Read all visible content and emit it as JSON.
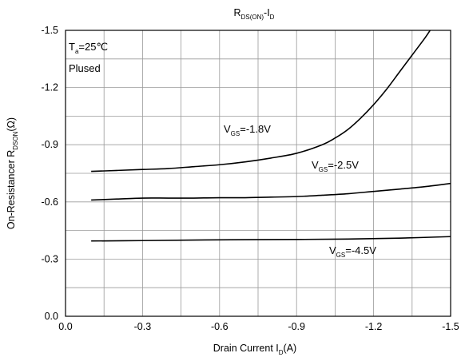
{
  "chart_data": {
    "type": "line",
    "title": {
      "main": "R",
      "sub1": "DS(ON)",
      "mid": "-I",
      "sub2": "D"
    },
    "xlabel": {
      "main": "Drain Current I",
      "sub": "D",
      "tail": "(A)"
    },
    "ylabel": {
      "main": "On-Resistancer R",
      "sub": "DSON",
      "tail": "(Ω)"
    },
    "xlim": [
      0.0,
      -1.5
    ],
    "ylim": [
      0.0,
      -1.5
    ],
    "x_ticks": [
      0.0,
      -0.3,
      -0.6,
      -0.9,
      -1.2,
      -1.5
    ],
    "y_ticks": [
      0.0,
      -0.3,
      -0.6,
      -0.9,
      -1.2,
      -1.5
    ],
    "x_tick_labels": [
      "0.0",
      "-0.3",
      "-0.6",
      "-0.9",
      "-1.2",
      "-1.5"
    ],
    "y_tick_labels": [
      "0.0",
      "-0.3",
      "-0.6",
      "-0.9",
      "-1.2",
      "-1.5"
    ],
    "grid": true,
    "conditions": {
      "temp": {
        "main": "T",
        "sub": "a",
        "tail": "=25℃"
      },
      "mode": "Plused"
    },
    "series": [
      {
        "name": {
          "main": "V",
          "sub": "GS",
          "tail": "=-1.8V"
        },
        "x": [
          -0.1,
          -0.2,
          -0.3,
          -0.4,
          -0.5,
          -0.6,
          -0.7,
          -0.8,
          -0.9,
          -1.0,
          -1.05,
          -1.1,
          -1.15,
          -1.2,
          -1.25,
          -1.3,
          -1.35,
          -1.4,
          -1.42
        ],
        "y": [
          -0.76,
          -0.765,
          -0.77,
          -0.775,
          -0.785,
          -0.795,
          -0.81,
          -0.83,
          -0.855,
          -0.9,
          -0.935,
          -0.98,
          -1.04,
          -1.11,
          -1.19,
          -1.28,
          -1.37,
          -1.46,
          -1.5
        ]
      },
      {
        "name": {
          "main": "V",
          "sub": "GS",
          "tail": "=-2.5V"
        },
        "x": [
          -0.1,
          -0.2,
          -0.3,
          -0.4,
          -0.5,
          -0.6,
          -0.7,
          -0.8,
          -0.9,
          -1.0,
          -1.1,
          -1.2,
          -1.3,
          -1.4,
          -1.5
        ],
        "y": [
          -0.61,
          -0.615,
          -0.62,
          -0.62,
          -0.62,
          -0.622,
          -0.622,
          -0.625,
          -0.628,
          -0.635,
          -0.643,
          -0.655,
          -0.667,
          -0.68,
          -0.697
        ]
      },
      {
        "name": {
          "main": "V",
          "sub": "GS",
          "tail": "=-4.5V"
        },
        "x": [
          -0.1,
          -0.3,
          -0.5,
          -0.7,
          -0.9,
          -1.1,
          -1.3,
          -1.5
        ],
        "y": [
          -0.395,
          -0.397,
          -0.4,
          -0.402,
          -0.403,
          -0.405,
          -0.41,
          -0.418
        ]
      }
    ]
  }
}
